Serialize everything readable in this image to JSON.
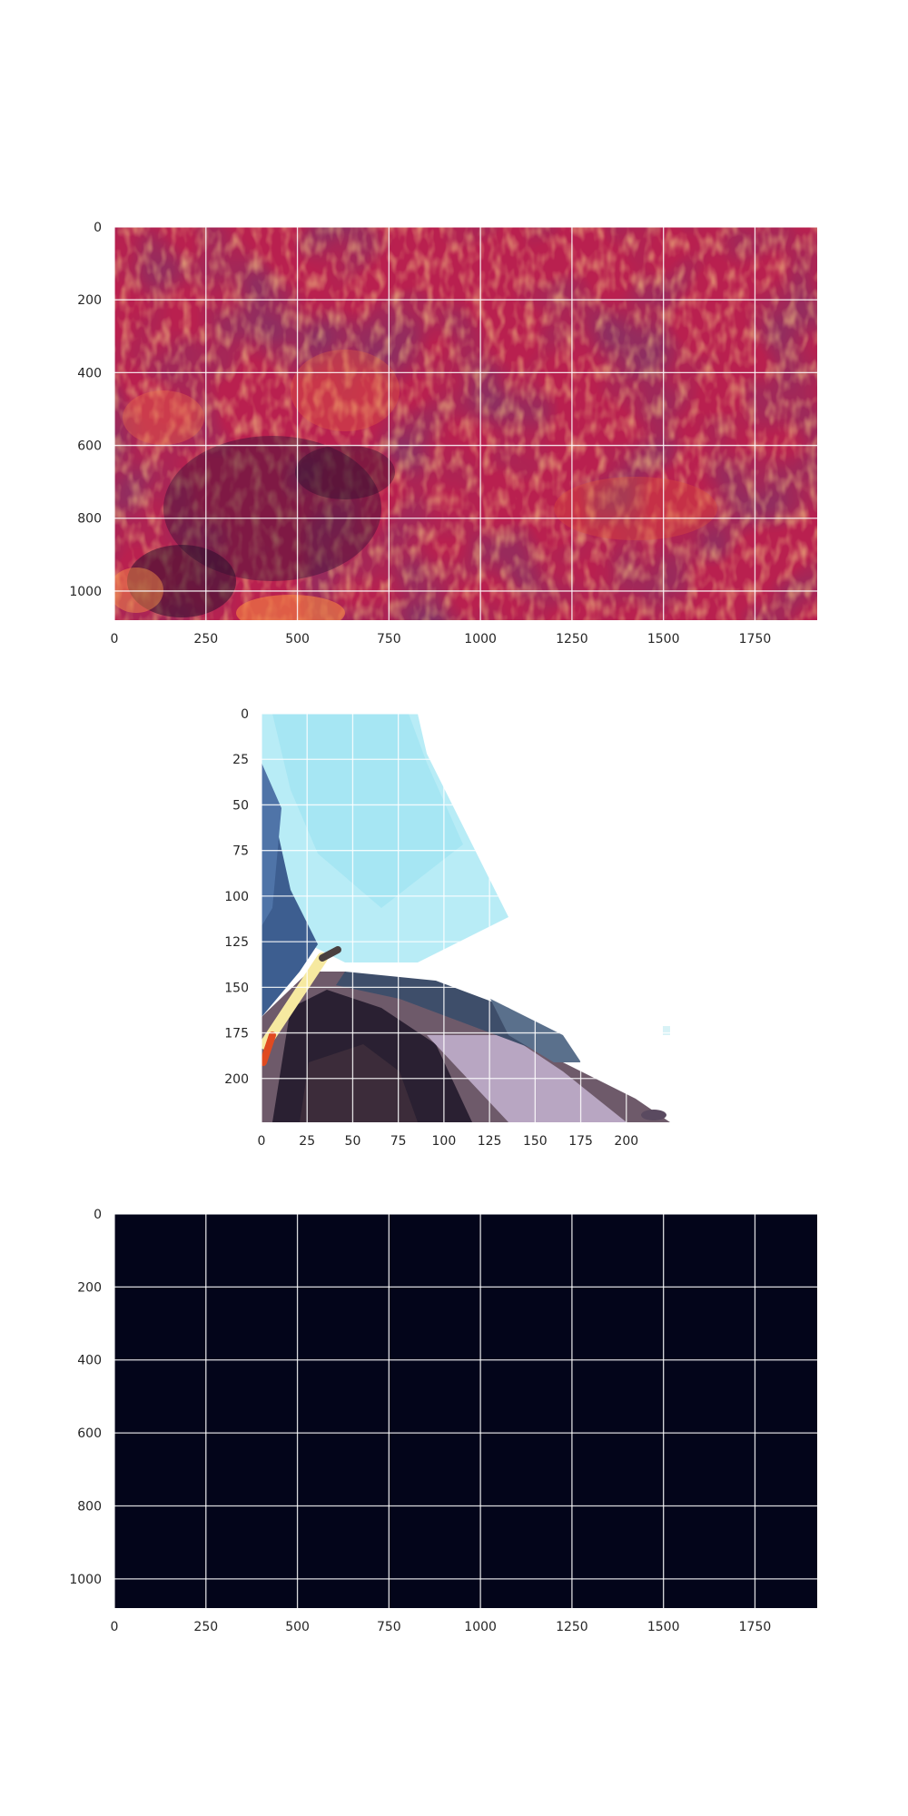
{
  "chart_data": [
    {
      "type": "heatmap",
      "title": "",
      "xlabel": "",
      "ylabel": "",
      "xlim": [
        0,
        1920
      ],
      "ylim": [
        1080,
        0
      ],
      "xticks": [
        0,
        250,
        500,
        750,
        1000,
        1250,
        1500,
        1750
      ],
      "yticks": [
        0,
        200,
        400,
        600,
        800,
        1000
      ],
      "grid": true,
      "colormap": "inferno-magma",
      "colors": {
        "low": "#1a0f2e",
        "mid": "#c0205a",
        "high": "#ffb040"
      }
    },
    {
      "type": "heatmap",
      "title": "",
      "xlabel": "",
      "ylabel": "",
      "xlim": [
        0,
        224
      ],
      "ylim": [
        224,
        0
      ],
      "xticks": [
        0,
        25,
        50,
        75,
        100,
        125,
        150,
        175,
        200
      ],
      "yticks": [
        0,
        25,
        50,
        75,
        100,
        125,
        150,
        175,
        200
      ],
      "grid": true,
      "content": "rgb image"
    },
    {
      "type": "heatmap",
      "title": "",
      "xlabel": "",
      "ylabel": "",
      "xlim": [
        0,
        1920
      ],
      "ylim": [
        1080,
        0
      ],
      "xticks": [
        0,
        250,
        500,
        750,
        1000,
        1250,
        1500,
        1750
      ],
      "yticks": [
        0,
        200,
        400,
        600,
        800,
        1000
      ],
      "grid": true,
      "colors": {
        "fill": "#03051a"
      }
    }
  ]
}
